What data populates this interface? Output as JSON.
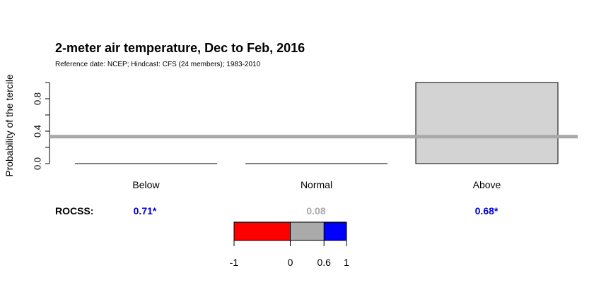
{
  "chart_data": {
    "type": "bar",
    "title": "2-meter air temperature, Dec to Feb, 2016",
    "subtitle": "Reference date: NCEP; Hindcast: CFS (24 members); 1983-2010",
    "ylabel": "Probability of the tercile",
    "categories": [
      "Below",
      "Normal",
      "Above"
    ],
    "values": [
      0.0,
      0.0,
      1.0
    ],
    "ylim": [
      0,
      1
    ],
    "yticks": [
      "0.0",
      "0.4",
      "0.8"
    ],
    "reference_line": 0.333,
    "bar_color": "#d3d3d3",
    "reference_line_color": "#a9a9a9",
    "rocss": {
      "label": "ROCSS:",
      "values": [
        "0.71*",
        "0.08",
        "0.68*"
      ],
      "colors": [
        "#0000cd",
        "#a9a9a9",
        "#0000cd"
      ]
    },
    "colorbar": {
      "segments": [
        {
          "from": -1,
          "to": 0,
          "color": "#ff0000"
        },
        {
          "from": 0,
          "to": 0.6,
          "color": "#aaaaaa"
        },
        {
          "from": 0.6,
          "to": 1,
          "color": "#0000ff"
        }
      ],
      "ticks": [
        "-1",
        "0",
        "0.6",
        "1"
      ]
    }
  }
}
